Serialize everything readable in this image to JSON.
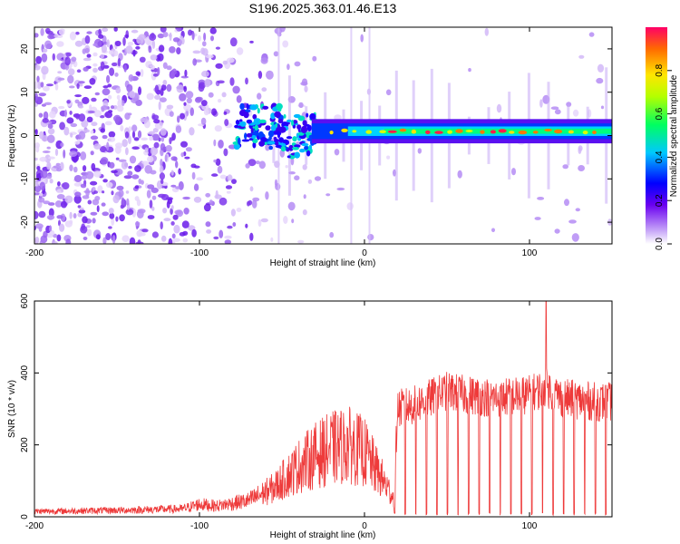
{
  "chart_data": [
    {
      "type": "heatmap",
      "title": "S196.2025.363.01.46.E13",
      "xlabel": "Height of straight line (km)",
      "ylabel": "Frequency (Hz)",
      "xlim": [
        -200,
        150
      ],
      "ylim": [
        -25,
        25
      ],
      "xticks": [
        -200,
        -100,
        0,
        100
      ],
      "yticks": [
        -20,
        -10,
        0,
        10,
        20
      ],
      "colorbar": {
        "label": "Normalized spectral amplitude",
        "range": [
          0,
          1
        ],
        "ticks": [
          "0.0",
          "0.2",
          "0.4",
          "0.6",
          "0.8"
        ],
        "colors": [
          "#ffffff",
          "#c8a8f8",
          "#6a00f0",
          "#0000ff",
          "#00c8ff",
          "#00ff60",
          "#b4ff00",
          "#ffe600",
          "#ff6a00",
          "#ff0066"
        ]
      },
      "features": {
        "noise_region_x": [
          -200,
          -80
        ],
        "transition_x": [
          -80,
          -30
        ],
        "signal_band_freq": 1.0,
        "signal_band_x": [
          -30,
          150
        ]
      }
    },
    {
      "type": "line",
      "series_name": "SNR",
      "series_color": "#ee3a3a",
      "xlabel": "Height of straight line (km)",
      "ylabel": "SNR (10 * v/v)",
      "xlim": [
        -200,
        150
      ],
      "ylim": [
        0,
        600
      ],
      "xticks": [
        -200,
        -100,
        0,
        100
      ],
      "yticks": [
        0,
        200,
        400,
        600
      ],
      "envelope_x": [
        -200,
        -150,
        -110,
        -100,
        -90,
        -70,
        -55,
        -40,
        -30,
        -20,
        -10,
        0,
        10,
        18,
        20,
        30,
        40,
        50,
        60,
        80,
        100,
        110,
        120,
        140,
        150
      ],
      "envelope_y": [
        15,
        18,
        22,
        35,
        30,
        45,
        80,
        140,
        170,
        190,
        200,
        180,
        110,
        50,
        300,
        310,
        330,
        350,
        340,
        330,
        340,
        360,
        330,
        320,
        320
      ],
      "peak": {
        "x": 110,
        "y": 600
      }
    }
  ]
}
